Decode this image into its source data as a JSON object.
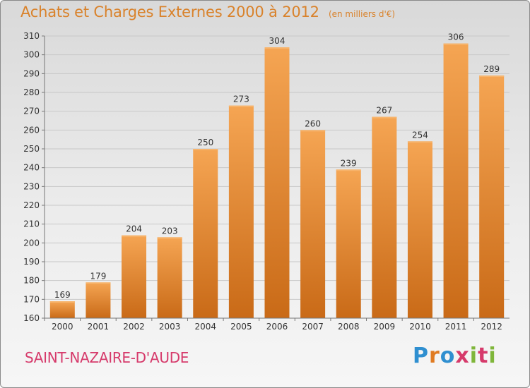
{
  "chart_data": {
    "type": "bar",
    "title": "Achats et Charges Externes 2000 à 2012",
    "subtitle": "(en milliers d'€)",
    "categories": [
      "2000",
      "2001",
      "2002",
      "2003",
      "2004",
      "2005",
      "2006",
      "2007",
      "2008",
      "2009",
      "2010",
      "2011",
      "2012"
    ],
    "values": [
      169,
      179,
      204,
      203,
      250,
      273,
      304,
      260,
      239,
      267,
      254,
      306,
      289
    ],
    "ylim": [
      160,
      310
    ],
    "yticks": [
      160,
      170,
      180,
      190,
      200,
      210,
      220,
      230,
      240,
      250,
      260,
      270,
      280,
      290,
      300,
      310
    ],
    "grid": true,
    "bar_color": "#f0973f",
    "bar_color_dark": "#c96a17"
  },
  "commune": "SAINT-NAZAIRE-D'AUDE",
  "logo": {
    "letters": [
      "P",
      "r",
      "o",
      "x",
      "i",
      "t",
      "i"
    ],
    "colors": [
      "#2f8fd0",
      "#e07b22",
      "#2f8fd0",
      "#d63a6b",
      "#7fb63a",
      "#d63a6b",
      "#7fb63a"
    ]
  }
}
